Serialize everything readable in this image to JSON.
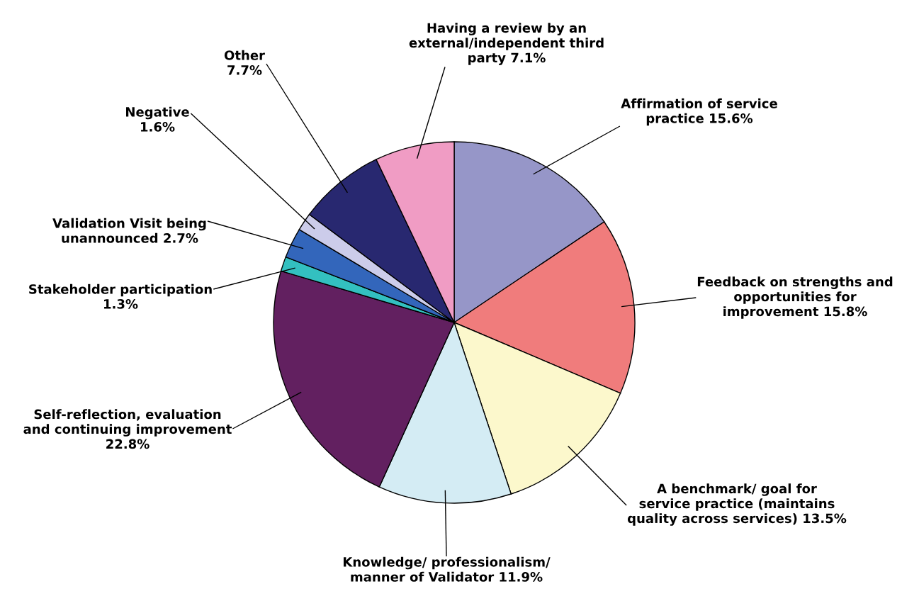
{
  "chart_data": {
    "type": "pie",
    "categories": [
      "Affirmation of service\npractice",
      "Feedback on strengths and\nopportunities for\nimprovement",
      "A benchmark/ goal for\nservice practice (maintains\nquality across services)",
      "Knowledge/ professionalism/\nmanner of Validator",
      "Self-reflection, evaluation\nand continuing improvement",
      "Stakeholder participation",
      "Validation Visit being\nunannounced",
      "Negative",
      "Other",
      "Having a review by an\nexternal/independent third\nparty"
    ],
    "values": [
      15.6,
      15.8,
      13.5,
      11.9,
      22.8,
      1.3,
      2.7,
      1.6,
      7.7,
      7.1
    ],
    "value_labels": [
      "15.6%",
      "15.8%",
      "13.5%",
      "11.9%",
      "22.8%",
      "1.3%",
      "2.7%",
      "1.6%",
      "7.7%",
      "7.1%"
    ],
    "colors": [
      "#9696c8",
      "#f07c7c",
      "#fcf8cc",
      "#d4ecf4",
      "#622060",
      "#33c0c0",
      "#3366bb",
      "#ccccea",
      "#282870",
      "#f09cc4"
    ]
  }
}
